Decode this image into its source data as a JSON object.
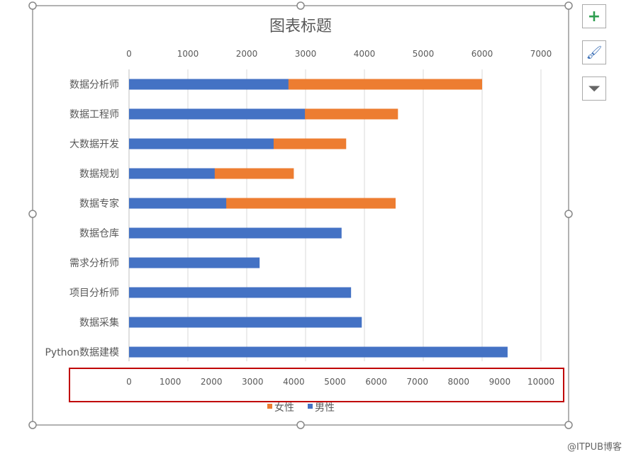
{
  "chart_data": {
    "type": "bar",
    "orientation": "horizontal",
    "title": "图表标题",
    "categories": [
      "数据分析师",
      "数据工程师",
      "大数据开发",
      "数据规划",
      "数据专家",
      "数据仓库",
      "需求分析师",
      "项目分析师",
      "数据采集",
      "Python数据建模"
    ],
    "series": [
      {
        "name": "女性",
        "color": "#ED7D31",
        "axis": "top",
        "values": [
          6000,
          4570,
          3690,
          2800,
          4530,
          null,
          null,
          null,
          null,
          null
        ]
      },
      {
        "name": "男性",
        "color": "#4472C4",
        "axis": "bottom",
        "values": [
          3870,
          4270,
          3510,
          2080,
          2360,
          5160,
          3170,
          5390,
          5650,
          9190
        ]
      }
    ],
    "top_axis": {
      "range": [
        0,
        7000
      ],
      "ticks": [
        "0",
        "1000",
        "2000",
        "3000",
        "4000",
        "5000",
        "6000",
        "7000"
      ]
    },
    "bottom_axis": {
      "range": [
        0,
        10000
      ],
      "ticks": [
        "0",
        "1000",
        "2000",
        "3000",
        "4000",
        "5000",
        "6000",
        "7000",
        "8000",
        "9000",
        "10000"
      ]
    },
    "grid": true,
    "legend": "bottom",
    "highlight_color": "#C00000"
  },
  "side_buttons": {
    "add": "+",
    "brush": "🖌",
    "filter": "⏷"
  },
  "watermark": "@ITPUB博客"
}
